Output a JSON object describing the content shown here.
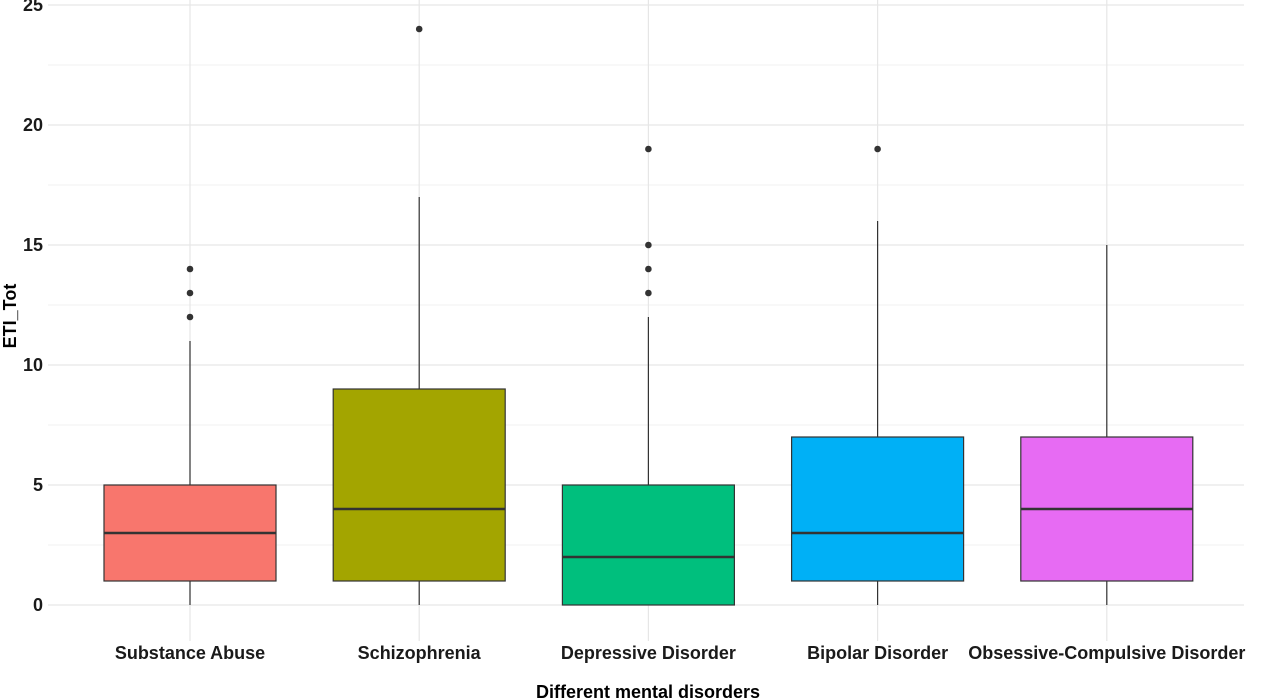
{
  "chart_data": {
    "type": "box",
    "xlabel": "Different mental disorders",
    "ylabel": "ETI_Tot",
    "ylim": [
      -1,
      25
    ],
    "yticks": [
      0,
      5,
      10,
      15,
      20,
      25
    ],
    "grid": true,
    "legend": "none",
    "categories": [
      "Substance Abuse",
      "Schizophrenia",
      "Depressive Disorder",
      "Bipolar Disorder",
      "Obsessive-Compulsive Disorder"
    ],
    "boxes": [
      {
        "category": "Substance Abuse",
        "lower_whisker": 0,
        "q1": 1,
        "median": 3,
        "q3": 5,
        "upper_whisker": 11,
        "outliers": [
          12,
          13,
          14
        ],
        "color": "#F8766D"
      },
      {
        "category": "Schizophrenia",
        "lower_whisker": 0,
        "q1": 1,
        "median": 4,
        "q3": 9,
        "upper_whisker": 17,
        "outliers": [
          24
        ],
        "color": "#A3A500"
      },
      {
        "category": "Depressive Disorder",
        "lower_whisker": 0,
        "q1": 0,
        "median": 2,
        "q3": 5,
        "upper_whisker": 12,
        "outliers": [
          13,
          14,
          15,
          19
        ],
        "color": "#00BF7D"
      },
      {
        "category": "Bipolar Disorder",
        "lower_whisker": 0,
        "q1": 1,
        "median": 3,
        "q3": 7,
        "upper_whisker": 16,
        "outliers": [
          19
        ],
        "color": "#00B0F6"
      },
      {
        "category": "Obsessive-Compulsive Disorder",
        "lower_whisker": 0,
        "q1": 1,
        "median": 4,
        "q3": 7,
        "upper_whisker": 15,
        "outliers": [],
        "color": "#E76BF3"
      }
    ]
  }
}
